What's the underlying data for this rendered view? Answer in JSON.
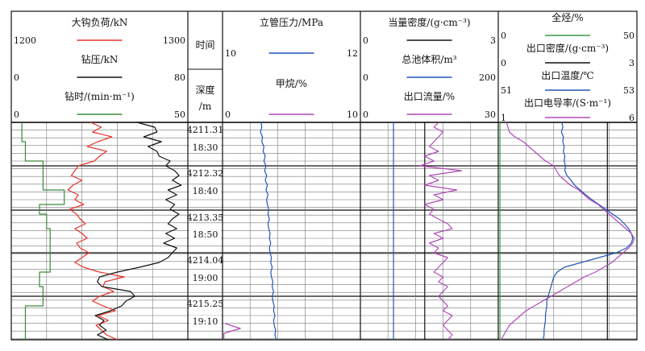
{
  "chart_data": {
    "type": "line",
    "title": "",
    "tracks": [
      {
        "name": "track-1",
        "curves": [
          {
            "label": "大钩负荷/kN",
            "color": "#e8332b",
            "min": "1200",
            "max": "1300",
            "samples": [
              1245,
              1251,
              1246,
              1257,
              1249,
              1243,
              1254,
              1250,
              1247,
              1238,
              1236,
              1234,
              1240,
              1235,
              1232,
              1238,
              1236,
              1241,
              1233,
              1237,
              1239,
              1242,
              1236,
              1240,
              1243,
              1237,
              1239,
              1244,
              1240,
              1236,
              1241,
              1250,
              1264,
              1253,
              1252,
              1258,
              1250,
              1246,
              1252,
              1259,
              1249,
              1255,
              1248,
              1251,
              1254,
              1260
            ]
          },
          {
            "label": "钻压/kN",
            "color": "#111111",
            "min": "0",
            "max": "80",
            "samples": [
              57,
              65,
              66,
              60,
              68,
              62,
              66,
              67,
              72,
              70,
              74,
              76,
              73,
              77,
              71,
              75,
              70,
              74,
              72,
              76,
              73,
              71,
              75,
              70,
              74,
              69,
              75,
              73,
              71,
              67,
              58,
              48,
              40,
              39,
              41,
              54,
              56,
              52,
              50,
              45,
              38,
              42,
              40,
              43,
              39,
              44
            ]
          },
          {
            "label": "钻时/(min·m⁻¹)",
            "color": "#3a8a3a",
            "min": "0",
            "max": "50",
            "steps": [
              [
                0,
                3
              ],
              [
                4,
                4
              ],
              [
                8,
                9
              ],
              [
                14,
                15
              ],
              [
                17,
                8
              ],
              [
                19,
                10
              ],
              [
                22,
                11
              ],
              [
                28,
                11
              ],
              [
                31,
                8
              ],
              [
                34,
                9
              ],
              [
                38,
                4
              ],
              [
                45,
                4
              ]
            ]
          }
        ]
      },
      {
        "name": "track-2",
        "columns": [
          "时间",
          "深度",
          "/m"
        ],
        "depths": [
          "4211.31",
          "4212.32",
          "4213.35",
          "4214.04",
          "4215.25"
        ],
        "times": [
          "18:30",
          "18:40",
          "18:50",
          "19:00",
          "19:10"
        ]
      },
      {
        "name": "track-3",
        "curves": [
          {
            "label": "立管压力/MPa",
            "color": "#2255bb",
            "min": "10",
            "max": "12",
            "samples": [
              10.56,
              10.57,
              10.55,
              10.58,
              10.57,
              10.6,
              10.59,
              10.62,
              10.6,
              10.63,
              10.61,
              10.64,
              10.62,
              10.65,
              10.63,
              10.66,
              10.64,
              10.65,
              10.67,
              10.66,
              10.68,
              10.66,
              10.67,
              10.69,
              10.68,
              10.7,
              10.68,
              10.69,
              10.71,
              10.7,
              10.72,
              10.7,
              10.71,
              10.73,
              10.72,
              10.74,
              10.72,
              10.73,
              10.75,
              10.74,
              10.76,
              10.74,
              10.75,
              10.77,
              10.76,
              10.78
            ]
          },
          {
            "label": "甲烷/%",
            "color": "#b04ab8",
            "min": "0",
            "max": "10",
            "spike": [
              0.2,
              1.3,
              0.1
            ]
          }
        ]
      },
      {
        "name": "track-4",
        "curves": [
          {
            "label": "当量密度/(g·cm⁻³)",
            "color": "#111111",
            "min": "0",
            "max": "3",
            "value": 1.4
          },
          {
            "label": "总池体积/m³",
            "color": "#2255bb",
            "min": "0",
            "max": "200",
            "value": 48
          },
          {
            "label": "出口流量/%",
            "color": "#b04ab8",
            "min": "0",
            "max": "30",
            "samples": [
              17,
              16,
              18,
              17,
              16,
              15,
              17,
              14,
              16,
              13,
              22,
              15,
              17,
              14,
              21,
              16,
              18,
              14,
              16,
              15,
              17,
              19,
              20,
              16,
              18,
              15,
              17,
              16,
              19,
              18,
              17,
              16,
              18,
              17,
              19,
              18,
              17,
              18,
              19,
              18,
              20,
              19,
              18,
              19,
              20,
              19
            ]
          }
        ]
      },
      {
        "name": "track-5",
        "curves": [
          {
            "label": "全烃/%",
            "color": "#3a9a4a",
            "min": "0",
            "max": "50",
            "value": 0.6
          },
          {
            "label": "出口密度/(g·cm⁻³)",
            "color": "#111111",
            "min": "0",
            "max": "3",
            "value": 2.36
          },
          {
            "label": "出口温度/℃",
            "color": "#2255bb",
            "min": "51",
            "max": "53",
            "samples": [
              51.92,
              51.93,
              51.91,
              51.94,
              51.93,
              51.95,
              51.94,
              51.96,
              51.95,
              51.97,
              51.96,
              51.99,
              52.05,
              52.1,
              52.18,
              52.26,
              52.35,
              52.45,
              52.55,
              52.65,
              52.75,
              52.82,
              52.88,
              52.92,
              52.94,
              52.92,
              52.85,
              52.7,
              52.45,
              52.2,
              51.95,
              51.85,
              51.8,
              51.78,
              51.76,
              51.74,
              51.72,
              51.7,
              51.7,
              51.69,
              51.68,
              51.68,
              51.67,
              51.66,
              51.66,
              51.65
            ]
          },
          {
            "label": "出口电导率/(S·m⁻¹)",
            "color": "#b04ab8",
            "min": "1",
            "max": "6",
            "samples": [
              1.3,
              1.35,
              1.4,
              1.6,
              1.9,
              2.1,
              2.3,
              2.5,
              2.7,
              3.0,
              3.1,
              3.2,
              3.4,
              3.6,
              3.9,
              4.1,
              4.3,
              4.6,
              4.8,
              5.0,
              5.2,
              5.4,
              5.6,
              5.8,
              5.9,
              5.85,
              5.7,
              5.5,
              5.3,
              5.1,
              4.8,
              4.5,
              4.1,
              3.8,
              3.5,
              3.2,
              2.9,
              2.6,
              2.3,
              2.0,
              1.8,
              1.6,
              1.4,
              1.3,
              1.2,
              1.1
            ]
          }
        ]
      }
    ]
  }
}
